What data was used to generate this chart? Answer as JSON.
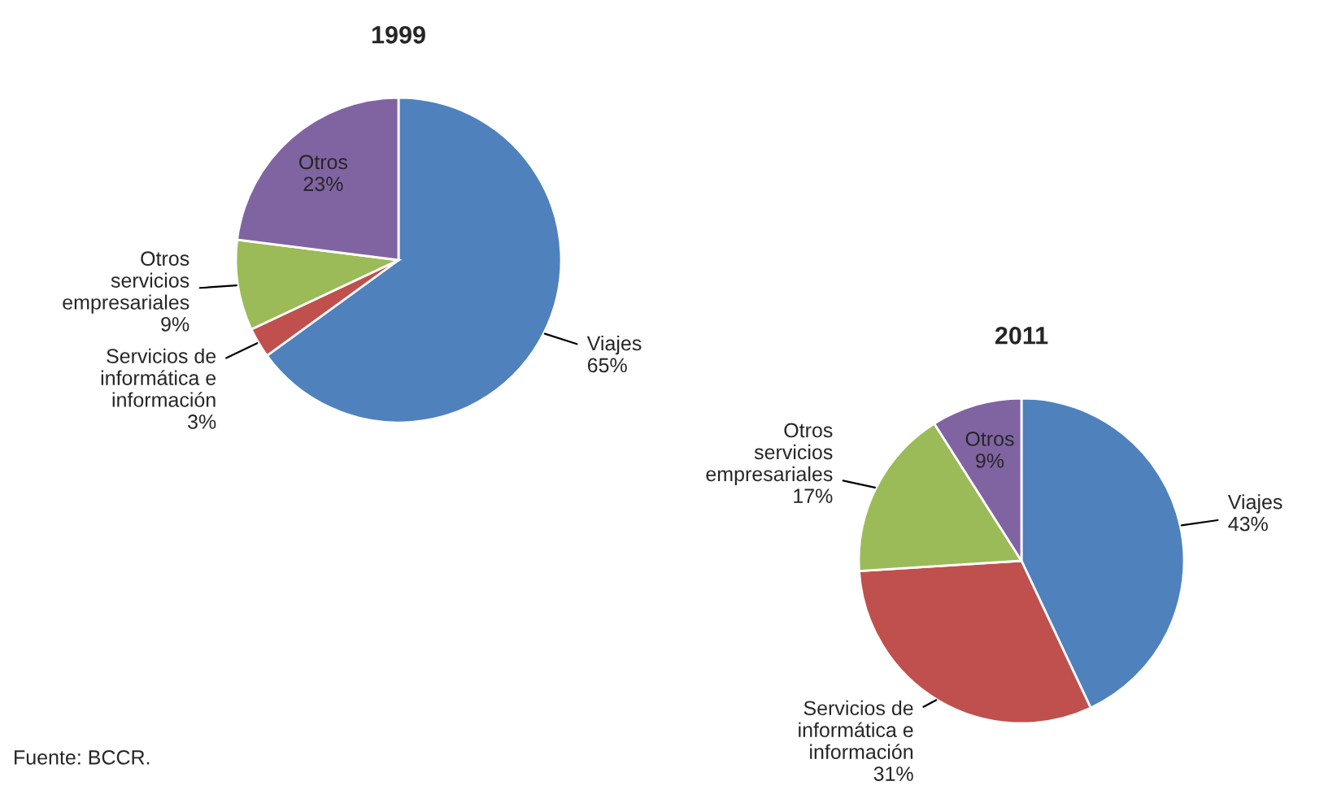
{
  "chart_data": [
    {
      "type": "pie",
      "title": "1999",
      "categories": [
        "Viajes",
        "Servicios de\ninformática e\ninformación",
        "Otros\nservicios\nempresariales",
        "Otros"
      ],
      "values": [
        65,
        3,
        9,
        23
      ],
      "value_labels": [
        "65%",
        "3%",
        "9%",
        "23%"
      ],
      "colors": [
        "#4f81bd",
        "#c0504d",
        "#9bbb59",
        "#8064a2"
      ],
      "annotations": [
        "Fuente: BCCR."
      ]
    },
    {
      "type": "pie",
      "title": "2011",
      "categories": [
        "Viajes",
        "Servicios de\ninformática e\ninformación",
        "Otros\nservicios\nempresariales",
        "Otros"
      ],
      "values": [
        43,
        31,
        17,
        9
      ],
      "value_labels": [
        "43%",
        "31%",
        "17%",
        "9%"
      ],
      "colors": [
        "#4f81bd",
        "#c0504d",
        "#9bbb59",
        "#8064a2"
      ]
    }
  ]
}
